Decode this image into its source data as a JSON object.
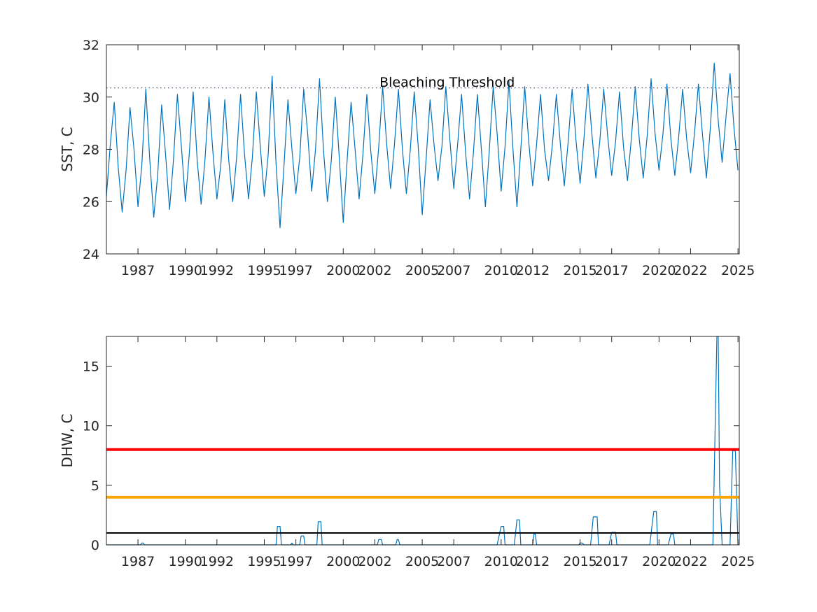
{
  "chart_data": [
    {
      "type": "line",
      "title": "",
      "xlabel": "",
      "ylabel": "SST, C",
      "xlim": [
        "1985-01-01",
        "2025-01-31"
      ],
      "ylim": [
        24,
        32
      ],
      "yticks": [
        24,
        26,
        28,
        30,
        32
      ],
      "xticks": [
        "1987",
        "1990",
        "1992",
        "1995",
        "1997",
        "2000",
        "2002",
        "2005",
        "2007",
        "2010",
        "2012",
        "2015",
        "2017",
        "2020",
        "2022",
        "2025"
      ],
      "grid": false,
      "annotations": [
        {
          "text": "Bleaching Threshold",
          "x": "2006-08-01",
          "y": 30.55
        }
      ],
      "threshold_line": {
        "y": 30.35,
        "style": "dotted",
        "color": "#3a3a6a"
      },
      "series": [
        {
          "color": "#0072BD",
          "x": [
            "1985-01-01",
            "1985-04-01",
            "1985-07-01",
            "1985-10-01",
            "1986-01-01",
            "1986-04-01",
            "1986-07-01",
            "1986-10-01",
            "1987-01-01",
            "1987-04-01",
            "1987-07-01",
            "1987-10-01",
            "1988-01-01",
            "1988-04-01",
            "1988-07-01",
            "1988-10-01",
            "1989-01-01",
            "1989-04-01",
            "1989-07-01",
            "1989-10-01",
            "1990-01-01",
            "1990-04-01",
            "1990-07-01",
            "1990-10-01",
            "1991-01-01",
            "1991-04-01",
            "1991-07-01",
            "1991-10-01",
            "1992-01-01",
            "1992-04-01",
            "1992-07-01",
            "1992-10-01",
            "1993-01-01",
            "1993-04-01",
            "1993-07-01",
            "1993-10-01",
            "1994-01-01",
            "1994-04-01",
            "1994-07-01",
            "1994-10-01",
            "1995-01-01",
            "1995-04-01",
            "1995-07-01",
            "1995-10-01",
            "1996-01-01",
            "1996-04-01",
            "1996-07-01",
            "1996-10-01",
            "1997-01-01",
            "1997-04-01",
            "1997-07-01",
            "1997-10-01",
            "1998-01-01",
            "1998-04-01",
            "1998-07-01",
            "1998-10-01",
            "1999-01-01",
            "1999-04-01",
            "1999-07-01",
            "1999-10-01",
            "2000-01-01",
            "2000-04-01",
            "2000-07-01",
            "2000-10-01",
            "2001-01-01",
            "2001-04-01",
            "2001-07-01",
            "2001-10-01",
            "2002-01-01",
            "2002-04-01",
            "2002-07-01",
            "2002-10-01",
            "2003-01-01",
            "2003-04-01",
            "2003-07-01",
            "2003-10-01",
            "2004-01-01",
            "2004-04-01",
            "2004-07-01",
            "2004-10-01",
            "2005-01-01",
            "2005-04-01",
            "2005-07-01",
            "2005-10-01",
            "2006-01-01",
            "2006-04-01",
            "2006-07-01",
            "2006-10-01",
            "2007-01-01",
            "2007-04-01",
            "2007-07-01",
            "2007-10-01",
            "2008-01-01",
            "2008-04-01",
            "2008-07-01",
            "2008-10-01",
            "2009-01-01",
            "2009-04-01",
            "2009-07-01",
            "2009-10-01",
            "2010-01-01",
            "2010-04-01",
            "2010-07-01",
            "2010-10-01",
            "2011-01-01",
            "2011-04-01",
            "2011-07-01",
            "2011-10-01",
            "2012-01-01",
            "2012-04-01",
            "2012-07-01",
            "2012-10-01",
            "2013-01-01",
            "2013-04-01",
            "2013-07-01",
            "2013-10-01",
            "2014-01-01",
            "2014-04-01",
            "2014-07-01",
            "2014-10-01",
            "2015-01-01",
            "2015-04-01",
            "2015-07-01",
            "2015-10-01",
            "2016-01-01",
            "2016-04-01",
            "2016-07-01",
            "2016-10-01",
            "2017-01-01",
            "2017-04-01",
            "2017-07-01",
            "2017-10-01",
            "2018-01-01",
            "2018-04-01",
            "2018-07-01",
            "2018-10-01",
            "2019-01-01",
            "2019-04-01",
            "2019-07-01",
            "2019-10-01",
            "2020-01-01",
            "2020-04-01",
            "2020-07-01",
            "2020-10-01",
            "2021-01-01",
            "2021-04-01",
            "2021-07-01",
            "2021-10-01",
            "2022-01-01",
            "2022-04-01",
            "2022-07-01",
            "2022-10-01",
            "2023-01-01",
            "2023-04-01",
            "2023-07-01",
            "2023-10-01",
            "2024-01-01",
            "2024-04-01",
            "2024-07-01",
            "2024-10-01",
            "2025-01-01"
          ],
          "y": [
            26.2,
            28.2,
            29.8,
            27.3,
            25.6,
            27.2,
            29.6,
            28.0,
            25.8,
            27.4,
            30.3,
            27.6,
            25.4,
            27.0,
            29.7,
            27.8,
            25.7,
            27.6,
            30.1,
            28.1,
            26.0,
            27.8,
            30.2,
            27.6,
            25.9,
            27.6,
            30.0,
            27.9,
            26.1,
            27.4,
            29.9,
            27.6,
            26.0,
            27.7,
            30.1,
            27.8,
            26.1,
            27.7,
            30.2,
            28.1,
            26.2,
            27.8,
            30.8,
            27.4,
            25.0,
            27.4,
            29.9,
            28.0,
            26.3,
            27.7,
            30.3,
            28.6,
            26.4,
            28.0,
            30.7,
            28.0,
            26.0,
            27.6,
            30.0,
            27.7,
            25.2,
            27.6,
            29.8,
            28.0,
            26.1,
            27.8,
            30.1,
            27.9,
            26.3,
            28.1,
            30.4,
            28.2,
            26.5,
            28.2,
            30.3,
            28.0,
            26.3,
            28.0,
            30.2,
            28.1,
            25.5,
            27.6,
            29.9,
            28.2,
            26.8,
            28.1,
            30.4,
            28.4,
            26.5,
            28.2,
            30.1,
            27.9,
            26.1,
            27.9,
            30.1,
            28.0,
            25.8,
            27.9,
            30.4,
            28.6,
            26.4,
            28.1,
            30.6,
            28.0,
            25.8,
            28.0,
            30.4,
            28.3,
            26.6,
            28.2,
            30.1,
            28.0,
            26.8,
            28.2,
            30.1,
            28.2,
            26.6,
            28.3,
            30.3,
            28.3,
            26.7,
            28.4,
            30.5,
            28.6,
            26.9,
            28.3,
            30.3,
            28.5,
            27.0,
            28.3,
            30.2,
            28.1,
            26.8,
            28.4,
            30.4,
            28.4,
            26.9,
            28.5,
            30.7,
            28.6,
            27.2,
            28.6,
            30.5,
            28.4,
            27.0,
            28.5,
            30.3,
            28.4,
            27.1,
            28.6,
            30.5,
            28.6,
            26.9,
            28.8,
            31.3,
            29.1,
            27.5,
            29.3,
            30.9,
            28.8,
            27.2
          ]
        }
      ]
    },
    {
      "type": "line",
      "title": "",
      "xlabel": "",
      "ylabel": "DHW, C",
      "xlim": [
        "1985-01-01",
        "2025-01-31"
      ],
      "ylim": [
        0,
        17.5
      ],
      "yticks": [
        0,
        5,
        10,
        15
      ],
      "xticks": [
        "1987",
        "1990",
        "1992",
        "1995",
        "1997",
        "2000",
        "2002",
        "2005",
        "2007",
        "2010",
        "2012",
        "2015",
        "2017",
        "2020",
        "2022",
        "2025"
      ],
      "grid": false,
      "reference_lines": [
        {
          "y": 8,
          "color": "#FF0000"
        },
        {
          "y": 4,
          "color": "#FFA500"
        },
        {
          "y": 1,
          "color": "#000000"
        }
      ],
      "series": [
        {
          "color": "#0072BD",
          "x": [
            "1985-01-01",
            "1987-03-01",
            "1987-04-01",
            "1987-05-01",
            "1987-06-01",
            "1995-10-01",
            "1995-11-01",
            "1996-01-01",
            "1996-02-01",
            "1996-09-01",
            "1996-10-01",
            "1996-11-01",
            "1997-04-01",
            "1997-05-01",
            "1997-07-01",
            "1997-08-01",
            "1998-05-01",
            "1998-06-01",
            "1998-08-01",
            "1998-09-01",
            "2002-03-01",
            "2002-04-01",
            "2002-06-01",
            "2002-07-01",
            "2003-05-01",
            "2003-06-01",
            "2003-07-01",
            "2003-08-01",
            "2009-10-01",
            "2010-01-01",
            "2010-03-01",
            "2010-04-01",
            "2010-11-01",
            "2011-01-01",
            "2011-03-01",
            "2011-04-01",
            "2012-01-01",
            "2012-02-01",
            "2012-03-01",
            "2012-04-01",
            "2014-12-01",
            "2015-01-01",
            "2015-03-01",
            "2015-04-01",
            "2015-09-01",
            "2015-11-01",
            "2016-02-01",
            "2016-03-01",
            "2016-11-01",
            "2017-01-01",
            "2017-04-01",
            "2017-05-01",
            "2019-06-01",
            "2019-09-01",
            "2019-11-01",
            "2019-12-01",
            "2020-08-01",
            "2020-10-01",
            "2020-12-01",
            "2021-01-01",
            "2023-06-01",
            "2023-09-01",
            "2023-10-01",
            "2023-11-01",
            "2024-01-01",
            "2024-02-01",
            "2024-07-01",
            "2024-09-01",
            "2024-11-01",
            "2025-01-01"
          ],
          "y": [
            0,
            0,
            0.15,
            0.15,
            0,
            0,
            1.55,
            1.55,
            0,
            0,
            0.15,
            0,
            0,
            0.75,
            0.75,
            0,
            0,
            1.95,
            1.95,
            0,
            0,
            0.45,
            0.45,
            0,
            0,
            0.45,
            0.45,
            0,
            0,
            1.55,
            1.55,
            0,
            0,
            2.1,
            2.1,
            0,
            0,
            0.9,
            0.9,
            0,
            0,
            0.15,
            0.15,
            0,
            0,
            2.35,
            2.35,
            0,
            0,
            1.05,
            1.05,
            0,
            0,
            2.8,
            2.8,
            0,
            0,
            0.9,
            0.9,
            0,
            0,
            17.5,
            17.5,
            5,
            0,
            0,
            0,
            7.9,
            7.9,
            0
          ]
        }
      ]
    }
  ]
}
